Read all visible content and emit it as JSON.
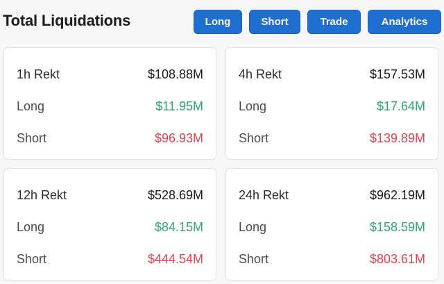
{
  "header": {
    "title": "Total Liquidations",
    "buttons": {
      "long": "Long",
      "short": "Short",
      "trade": "Trade",
      "analytics": "Analytics"
    }
  },
  "cards": [
    {
      "label": "1h Rekt",
      "total": "$108.88M",
      "long_label": "Long",
      "long": "$11.95M",
      "short_label": "Short",
      "short": "$96.93M"
    },
    {
      "label": "4h Rekt",
      "total": "$157.53M",
      "long_label": "Long",
      "long": "$17.64M",
      "short_label": "Short",
      "short": "$139.89M"
    },
    {
      "label": "12h Rekt",
      "total": "$528.69M",
      "long_label": "Long",
      "long": "$84.15M",
      "short_label": "Short",
      "short": "$444.54M"
    },
    {
      "label": "24h Rekt",
      "total": "$962.19M",
      "long_label": "Long",
      "long": "$158.59M",
      "short_label": "Short",
      "short": "$803.61M"
    }
  ],
  "colors": {
    "accent": "#1f6fd0",
    "long": "#2ea86f",
    "short": "#e0434f"
  }
}
